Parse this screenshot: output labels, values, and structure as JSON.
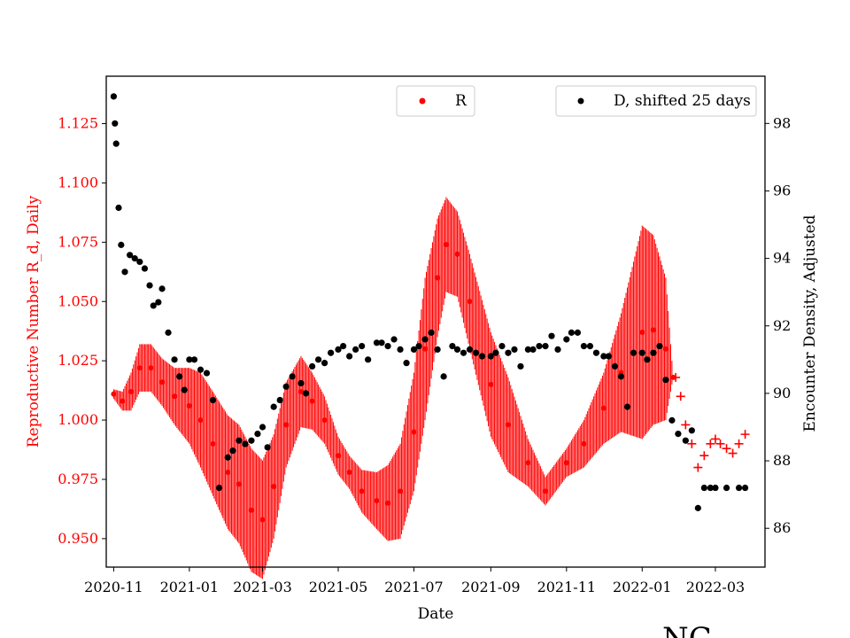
{
  "chart_data": {
    "type": "line",
    "xlabel": "Date",
    "ylabel_left": "Reproductive Number R_d, Daily",
    "ylabel_right": "Encounter Density, Adjusted",
    "corner_text": "NC",
    "x_ticks": [
      "2020-11",
      "2021-01",
      "2021-03",
      "2021-05",
      "2021-07",
      "2021-09",
      "2021-11",
      "2022-01",
      "2022-03"
    ],
    "x_range": [
      "2020-10-26",
      "2022-04-10"
    ],
    "ylim_left": [
      0.938,
      1.145
    ],
    "ylim_right": [
      84.85,
      99.4
    ],
    "yticks_left": [
      "0.950",
      "0.975",
      "1.000",
      "1.025",
      "1.050",
      "1.075",
      "1.100",
      "1.125"
    ],
    "yticks_right": [
      "86",
      "88",
      "90",
      "92",
      "94",
      "96",
      "98"
    ],
    "left_axis_color": "#ff0000",
    "grid": false,
    "legend_left": {
      "label": "R",
      "placement": "upper center",
      "color": "#ff0000"
    },
    "legend_right": {
      "label": "D, shifted 25 days",
      "placement": "upper right",
      "color": "#000000"
    },
    "series_R": {
      "color": "#ff0000",
      "marker": "dot",
      "x": [
        "2020-11-01",
        "2020-11-08",
        "2020-11-15",
        "2020-11-22",
        "2020-12-01",
        "2020-12-10",
        "2020-12-20",
        "2021-01-01",
        "2021-01-10",
        "2021-01-20",
        "2021-02-01",
        "2021-02-10",
        "2021-02-20",
        "2021-03-01",
        "2021-03-10",
        "2021-03-20",
        "2021-04-01",
        "2021-04-10",
        "2021-04-20",
        "2021-05-01",
        "2021-05-10",
        "2021-05-20",
        "2021-06-01",
        "2021-06-10",
        "2021-06-20",
        "2021-07-01",
        "2021-07-10",
        "2021-07-20",
        "2021-07-27",
        "2021-08-05",
        "2021-08-15",
        "2021-09-01",
        "2021-09-15",
        "2021-10-01",
        "2021-10-15",
        "2021-11-01",
        "2021-11-15",
        "2021-12-01",
        "2021-12-15",
        "2022-01-01",
        "2022-01-10",
        "2022-01-20",
        "2022-01-26"
      ],
      "values": [
        1.011,
        1.008,
        1.012,
        1.022,
        1.022,
        1.016,
        1.01,
        1.006,
        1.0,
        0.99,
        0.978,
        0.973,
        0.962,
        0.958,
        0.972,
        0.998,
        1.012,
        1.008,
        1.0,
        0.985,
        0.978,
        0.97,
        0.966,
        0.965,
        0.97,
        0.995,
        1.03,
        1.06,
        1.074,
        1.07,
        1.05,
        1.015,
        0.998,
        0.982,
        0.97,
        0.982,
        0.99,
        1.005,
        1.02,
        1.037,
        1.038,
        1.03,
        1.018
      ],
      "oscillation_amplitude": [
        0.002,
        0.004,
        0.008,
        0.01,
        0.01,
        0.01,
        0.012,
        0.016,
        0.02,
        0.022,
        0.024,
        0.025,
        0.026,
        0.025,
        0.022,
        0.018,
        0.015,
        0.012,
        0.01,
        0.008,
        0.007,
        0.009,
        0.012,
        0.016,
        0.02,
        0.025,
        0.03,
        0.025,
        0.02,
        0.018,
        0.02,
        0.022,
        0.02,
        0.01,
        0.006,
        0.006,
        0.01,
        0.015,
        0.025,
        0.045,
        0.04,
        0.03,
        0.0
      ]
    },
    "series_R_forecast": {
      "color": "#ff0000",
      "marker": "plus",
      "x": [
        "2022-01-28",
        "2022-02-01",
        "2022-02-05",
        "2022-02-10",
        "2022-02-15",
        "2022-02-20",
        "2022-02-25",
        "2022-03-01",
        "2022-03-05",
        "2022-03-10",
        "2022-03-15",
        "2022-03-20",
        "2022-03-25"
      ],
      "values": [
        1.018,
        1.01,
        0.998,
        0.99,
        0.98,
        0.985,
        0.99,
        0.992,
        0.99,
        0.988,
        0.986,
        0.99,
        0.994
      ]
    },
    "series_D": {
      "color": "#000000",
      "marker": "dot",
      "x": [
        "2020-11-01",
        "2020-11-02",
        "2020-11-03",
        "2020-11-05",
        "2020-11-07",
        "2020-11-10",
        "2020-11-14",
        "2020-11-18",
        "2020-11-22",
        "2020-11-26",
        "2020-11-30",
        "2020-12-03",
        "2020-12-07",
        "2020-12-10",
        "2020-12-15",
        "2020-12-20",
        "2020-12-24",
        "2020-12-28",
        "2021-01-01",
        "2021-01-05",
        "2021-01-10",
        "2021-01-15",
        "2021-01-20",
        "2021-01-25",
        "2021-02-01",
        "2021-02-05",
        "2021-02-10",
        "2021-02-15",
        "2021-02-20",
        "2021-02-25",
        "2021-03-01",
        "2021-03-05",
        "2021-03-10",
        "2021-03-15",
        "2021-03-20",
        "2021-03-25",
        "2021-04-01",
        "2021-04-05",
        "2021-04-10",
        "2021-04-15",
        "2021-04-20",
        "2021-04-25",
        "2021-05-01",
        "2021-05-05",
        "2021-05-10",
        "2021-05-15",
        "2021-05-20",
        "2021-05-25",
        "2021-06-01",
        "2021-06-05",
        "2021-06-10",
        "2021-06-15",
        "2021-06-20",
        "2021-06-25",
        "2021-07-01",
        "2021-07-05",
        "2021-07-10",
        "2021-07-15",
        "2021-07-20",
        "2021-07-25",
        "2021-08-01",
        "2021-08-05",
        "2021-08-10",
        "2021-08-15",
        "2021-08-20",
        "2021-08-25",
        "2021-09-01",
        "2021-09-05",
        "2021-09-10",
        "2021-09-15",
        "2021-09-20",
        "2021-09-25",
        "2021-10-01",
        "2021-10-05",
        "2021-10-10",
        "2021-10-15",
        "2021-10-20",
        "2021-10-25",
        "2021-11-01",
        "2021-11-05",
        "2021-11-10",
        "2021-11-15",
        "2021-11-20",
        "2021-11-25",
        "2021-12-01",
        "2021-12-05",
        "2021-12-10",
        "2021-12-15",
        "2021-12-20",
        "2021-12-25",
        "2022-01-01",
        "2022-01-05",
        "2022-01-10",
        "2022-01-15",
        "2022-01-20",
        "2022-01-25",
        "2022-01-30",
        "2022-02-05",
        "2022-02-10",
        "2022-02-15",
        "2022-02-20",
        "2022-02-25",
        "2022-03-01",
        "2022-03-10",
        "2022-03-20",
        "2022-03-25"
      ],
      "values": [
        98.8,
        98.0,
        97.4,
        95.5,
        94.4,
        93.6,
        94.1,
        94.0,
        93.9,
        93.7,
        93.2,
        92.6,
        92.7,
        93.1,
        91.8,
        91.0,
        90.5,
        90.1,
        91.0,
        91.0,
        90.7,
        90.6,
        89.8,
        87.2,
        88.1,
        88.3,
        88.6,
        88.5,
        88.6,
        88.8,
        89.0,
        88.4,
        89.6,
        89.8,
        90.2,
        90.5,
        90.3,
        90.0,
        90.8,
        91.0,
        90.9,
        91.2,
        91.3,
        91.4,
        91.1,
        91.3,
        91.4,
        91.0,
        91.5,
        91.5,
        91.4,
        91.6,
        91.3,
        90.9,
        91.3,
        91.4,
        91.6,
        91.8,
        91.3,
        90.5,
        91.4,
        91.3,
        91.2,
        91.3,
        91.2,
        91.1,
        91.1,
        91.2,
        91.4,
        91.2,
        91.3,
        90.8,
        91.3,
        91.3,
        91.4,
        91.4,
        91.7,
        91.3,
        91.6,
        91.8,
        91.8,
        91.4,
        91.4,
        91.2,
        91.1,
        91.1,
        90.8,
        90.5,
        89.6,
        91.2,
        91.2,
        91.0,
        91.2,
        91.4,
        90.4,
        89.2,
        88.8,
        88.6,
        88.9,
        86.6,
        87.2,
        87.2,
        87.2,
        87.2,
        87.2,
        87.2
      ]
    }
  }
}
